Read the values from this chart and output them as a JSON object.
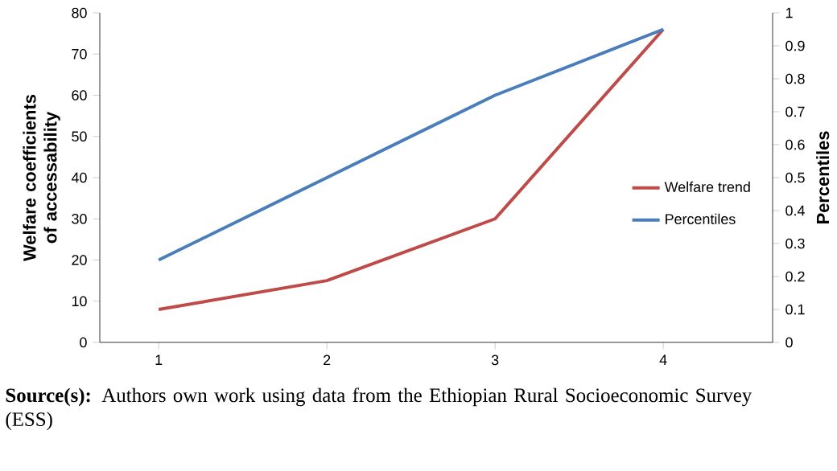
{
  "chart_data": {
    "type": "line",
    "categories": [
      "1",
      "2",
      "3",
      "4"
    ],
    "series": [
      {
        "name": "Welfare trend",
        "color": "#be4b48",
        "values": [
          8,
          15,
          30,
          76
        ]
      },
      {
        "name": "Percentiles",
        "color": "#4a7ebb",
        "values": [
          0.25,
          0.5,
          0.75,
          0.95
        ],
        "axis": "y2"
      }
    ],
    "ylabel": "Welfare coefficients of accessability",
    "y2label": "Percentiles",
    "ylim": [
      0,
      80
    ],
    "yticks": [
      0,
      10,
      20,
      30,
      40,
      50,
      60,
      70,
      80
    ],
    "y2lim": [
      0,
      1
    ],
    "y2ticks": [
      0,
      0.1,
      0.2,
      0.3,
      0.4,
      0.5,
      0.6,
      0.7,
      0.8,
      0.9,
      1
    ],
    "grid": false,
    "legend": "right",
    "marker": "none",
    "line_style": "solid",
    "annotations": [
      "**Source(s):** Authors own work using data from the Ethiopian Rural Socioeconomic Survey (ESS)"
    ]
  }
}
